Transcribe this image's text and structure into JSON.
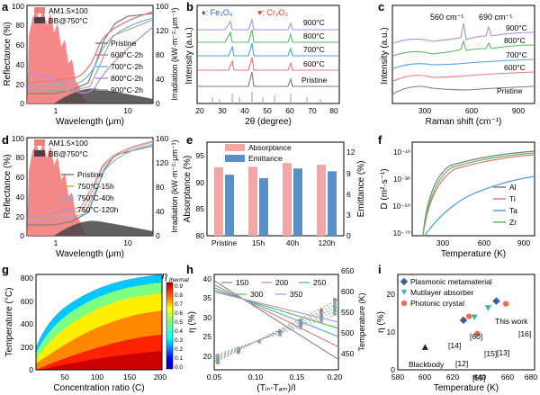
{
  "colors": {
    "pristine": "#808080",
    "c600": "#e07a7a",
    "c700": "#7fb2e0",
    "c800": "#b28fd8",
    "c900": "#a0a0a0",
    "am15": "#f47c7c",
    "bb": "#444444",
    "xrd_pristine": "#7a7a7a",
    "xrd_600": "#e07a7a",
    "xrd_700": "#4fa3d6",
    "xrd_800": "#5cb85c",
    "xrd_900": "#b28fd8",
    "absorptance": "#f2a7a7",
    "emittance": "#5b8fc7",
    "Al": "#7a7a7a",
    "Ti": "#e07a7a",
    "Ta": "#4fa3d6",
    "Zr": "#5cb85c",
    "plasmonic": "#3b5fa0",
    "multilayer": "#2fb9a9",
    "photonic": "#f26b5b",
    "blackbody": "#222222"
  },
  "panels": {
    "a": {
      "letter": "a",
      "xlabel": "Wavelength (μm)",
      "ylabel": "Reflectance (%)",
      "y2label": "Irradiation (kW·m⁻²·μm⁻¹)",
      "xticks": [
        "1",
        "10"
      ],
      "yticks": [
        "0",
        "20",
        "40",
        "60",
        "80",
        "100"
      ],
      "y2ticks": [
        "0",
        "40",
        "80",
        "120",
        "160"
      ],
      "legend_top": [
        "AM1.5×100",
        "BB@750°C"
      ],
      "legend_lines": [
        "Pristine",
        "600°C-2h",
        "700°C-2h",
        "800°C-2h",
        "900°C-2h"
      ]
    },
    "b": {
      "letter": "b",
      "xlabel": "2θ (degree)",
      "ylabel": "Intensity (a.u.)",
      "xticks": [
        "20",
        "30",
        "40",
        "50",
        "60",
        "70",
        "80"
      ],
      "legend_markers": [
        "♦: Fe₃O₄",
        "♥: Cr₂O₃"
      ],
      "labels": [
        "900°C",
        "800°C",
        "700°C",
        "600°C",
        "Pristine"
      ]
    },
    "c": {
      "letter": "c",
      "xlabel": "Raman shift (cm⁻¹)",
      "ylabel": "Intensity (a.u.)",
      "xticks": [
        "300",
        "600",
        "900"
      ],
      "peak1": "560 cm⁻¹",
      "peak2": "690 cm⁻¹",
      "labels": [
        "900°C",
        "800°C",
        "700°C",
        "600°C",
        "Pristine"
      ]
    },
    "d": {
      "letter": "d",
      "xlabel": "Wavelength (μm)",
      "ylabel": "Reflectance (%)",
      "y2label": "Irradiation (kW·m⁻²·μm⁻¹)",
      "xticks": [
        "1",
        "10"
      ],
      "yticks": [
        "0",
        "20",
        "40",
        "60",
        "80",
        "100"
      ],
      "y2ticks": [
        "0",
        "40",
        "80",
        "120",
        "160"
      ],
      "legend_top": [
        "AM1.5×100",
        "BB@750°C"
      ],
      "legend_lines": [
        "Pristine",
        "750°C-15h",
        "750°C-40h",
        "750°C-120h"
      ]
    },
    "e": {
      "letter": "e",
      "ylabel": "Absorptance (%)",
      "y2label": "Emittance (%)",
      "yticks": [
        "80",
        "85",
        "90",
        "95"
      ],
      "y2ticks": [
        "0",
        "3",
        "6",
        "9",
        "12"
      ],
      "legend": [
        "Absorptance",
        "Emittance"
      ]
    },
    "f": {
      "letter": "f",
      "xlabel": "Temperature (K)",
      "ylabel": "D (m²·s⁻¹)",
      "xticks": [
        "300",
        "600",
        "900"
      ],
      "yticks": [
        "10⁻¹⁰",
        "10⁻³⁰",
        "10⁻⁵⁰",
        "10⁻⁷⁰"
      ],
      "legend": [
        "Al",
        "Ti",
        "Ta",
        "Zr"
      ]
    },
    "g": {
      "letter": "g",
      "xlabel": "Concentration ratio (C)",
      "ylabel": "Temperature (°C)",
      "xticks": [
        "50",
        "100",
        "150",
        "200"
      ],
      "yticks": [
        "0",
        "200",
        "400",
        "600",
        "800"
      ],
      "cbar_title": "η",
      "cbar_sub": "thermal",
      "cbar_ticks": [
        "0.9",
        "0.8",
        "0.7",
        "0.6",
        "0.5",
        "0.4",
        "0.3",
        "0.2",
        "0.1",
        "0.0"
      ]
    },
    "h": {
      "letter": "h",
      "xlabel": "(Tᵢₙ-Tₐₘ)/I",
      "ylabel": "η (%)",
      "y2label": "Temperature (K)",
      "xticks": [
        "0.05",
        "0.10",
        "0.15",
        "0.20"
      ],
      "yticks": [
        "20",
        "25",
        "30",
        "35",
        "40"
      ],
      "y2ticks": [
        "450",
        "500",
        "550",
        "600",
        "650"
      ],
      "legend": [
        "150",
        "200",
        "250",
        "300",
        "350"
      ]
    },
    "i": {
      "letter": "i",
      "xlabel": "Temperature (K)",
      "ylabel": "η (%)",
      "xticks": [
        "580",
        "600",
        "620",
        "640",
        "660",
        "680"
      ],
      "yticks": [
        "0",
        "10",
        "20"
      ],
      "legend": [
        "Plasmonic metamaterial",
        "Mutilayer absorber",
        "Photonic crystal"
      ],
      "labels": [
        "This work",
        "[16]",
        "[13]",
        "[60]",
        "[14]",
        "[15]",
        "[12]",
        "[59]",
        "Blackbody"
      ]
    }
  },
  "chart_data": [
    {
      "panel": "e",
      "type": "bar",
      "categories": [
        "Pristine",
        "15h",
        "40h",
        "120h"
      ],
      "series": [
        {
          "name": "Absorptance",
          "axis": "left",
          "values": [
            92.8,
            92.9,
            93.6,
            93.3
          ]
        },
        {
          "name": "Emittance",
          "axis": "right",
          "values": [
            8.8,
            8.3,
            9.7,
            9.3
          ]
        }
      ],
      "ylabel": "Absorptance (%)",
      "y2label": "Emittance (%)",
      "ylim": [
        80,
        97.5
      ],
      "y2lim": [
        0,
        13.5
      ]
    },
    {
      "panel": "i",
      "type": "scatter",
      "xlabel": "Temperature (K)",
      "ylabel": "η (%)",
      "xlim": [
        580,
        680
      ],
      "ylim": [
        0,
        25
      ],
      "series": [
        {
          "name": "Plasmonic metamaterial",
          "points": [
            [
              652,
              18
            ],
            [
              628,
              13
            ]
          ]
        },
        {
          "name": "Mutilayer absorber",
          "points": [
            [
              646,
              16.2
            ],
            [
              636,
              13.8
            ]
          ]
        },
        {
          "name": "Photonic crystal",
          "points": [
            [
              659,
              17.3
            ],
            [
              632,
              14
            ],
            [
              638,
              9.5
            ]
          ]
        },
        {
          "name": "Blackbody",
          "points": [
            [
              600,
              5.8
            ]
          ]
        }
      ]
    },
    {
      "panel": "h",
      "type": "line",
      "xlabel": "(Tᵢₙ-Tₐₘ)/I",
      "ylabel": "η (%)",
      "y2label": "Temperature (K)",
      "xlim": [
        0.05,
        0.2
      ],
      "ylim": [
        18,
        41
      ],
      "y2lim": [
        420,
        650
      ],
      "x": [
        0.05,
        0.2
      ],
      "series": [
        {
          "name": "150",
          "values": [
            39.5,
            20.5
          ]
        },
        {
          "name": "200",
          "values": [
            38.5,
            23.5
          ]
        },
        {
          "name": "250",
          "values": [
            37.8,
            26
          ]
        },
        {
          "name": "300",
          "values": [
            37.2,
            28
          ]
        },
        {
          "name": "350",
          "values": [
            36.8,
            29.5
          ]
        }
      ]
    },
    {
      "panel": "f",
      "type": "line",
      "xlabel": "Temperature (K)",
      "ylabel": "D (m²·s⁻¹)",
      "xlim": [
        0,
        1000
      ],
      "series": [
        {
          "name": "Al",
          "end_log10": -8
        },
        {
          "name": "Ti",
          "end_log10": -9
        },
        {
          "name": "Ta",
          "end_log10": -24
        },
        {
          "name": "Zr",
          "end_log10": -10
        }
      ]
    }
  ]
}
